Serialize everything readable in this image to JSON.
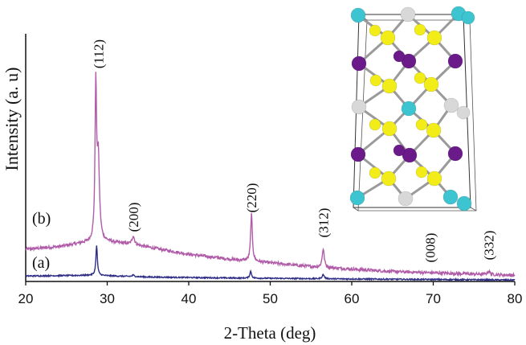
{
  "chart_data": {
    "type": "line",
    "xlabel": "2-Theta (deg)",
    "ylabel": "Intensity (a. u)",
    "xlim": [
      20,
      80
    ],
    "xticks": [
      "20",
      "30",
      "40",
      "50",
      "60",
      "70",
      "80"
    ],
    "ylim": [
      0,
      1
    ],
    "yticks": [],
    "grid": false,
    "legend": "none",
    "series": [
      {
        "name": "(b)",
        "color": "#b05ca8",
        "baseline": [
          [
            20,
            0.13
          ],
          [
            24,
            0.14
          ],
          [
            27,
            0.155
          ],
          [
            30,
            0.16
          ],
          [
            33,
            0.15
          ],
          [
            40,
            0.11
          ],
          [
            45,
            0.09
          ],
          [
            50,
            0.075
          ],
          [
            55,
            0.06
          ],
          [
            60,
            0.05
          ],
          [
            65,
            0.04
          ],
          [
            70,
            0.035
          ],
          [
            75,
            0.03
          ],
          [
            80,
            0.025
          ]
        ],
        "peaks": [
          {
            "x": 28.6,
            "y": 0.61,
            "width": 0.22
          },
          {
            "x": 28.9,
            "y": 0.33,
            "width": 0.35
          },
          {
            "x": 33.2,
            "y": 0.035,
            "width": 0.35
          },
          {
            "x": 47.7,
            "y": 0.19,
            "width": 0.25
          },
          {
            "x": 56.5,
            "y": 0.075,
            "width": 0.3
          },
          {
            "x": 76.8,
            "y": 0.012,
            "width": 0.4
          }
        ]
      },
      {
        "name": "(a)",
        "color": "#2e2d85",
        "baseline": [
          [
            20,
            0.022
          ],
          [
            28,
            0.025
          ],
          [
            35,
            0.018
          ],
          [
            45,
            0.014
          ],
          [
            60,
            0.01
          ],
          [
            80,
            0.006
          ]
        ],
        "peaks": [
          {
            "x": 28.7,
            "y": 0.12,
            "width": 0.22
          },
          {
            "x": 33.2,
            "y": 0.006,
            "width": 0.3
          },
          {
            "x": 47.6,
            "y": 0.028,
            "width": 0.25
          },
          {
            "x": 56.5,
            "y": 0.017,
            "width": 0.3
          }
        ]
      }
    ],
    "annotations": [
      {
        "text": "(112)",
        "x": 28.9
      },
      {
        "text": "(200)",
        "x": 33.2
      },
      {
        "text": "(220)",
        "x": 47.7
      },
      {
        "text": "(312)",
        "x": 56.5
      },
      {
        "text": "(008)",
        "x": 69.6
      },
      {
        "text": "(332)",
        "x": 76.8
      }
    ]
  },
  "inset": {
    "atom_colors": {
      "cyan": "#3cc5d0",
      "white": "#d8d8d8",
      "yellow": "#f2ec18",
      "purple": "#6b1a8a"
    }
  }
}
